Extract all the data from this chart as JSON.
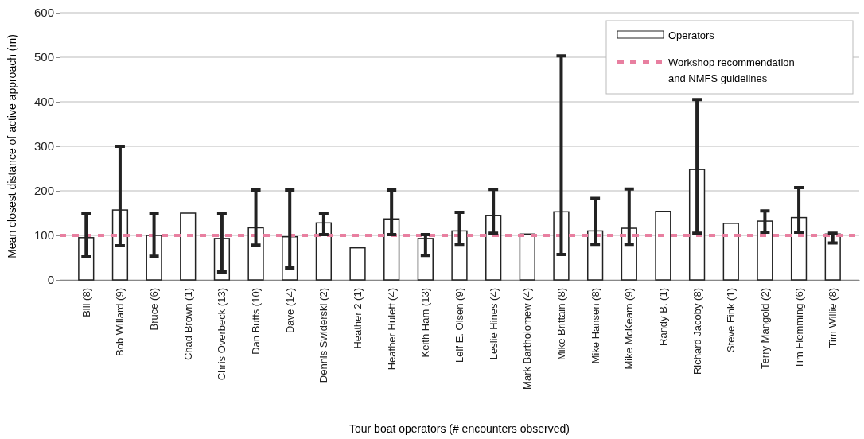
{
  "chart_data": {
    "type": "bar",
    "xlabel": "Tour boat operators (# encounters observed)",
    "ylabel": "Mean closest distance of active approach (m)",
    "categories": [
      "Bill (8)",
      "Bob Willard (9)",
      "Bruce (6)",
      "Chad Brown (1)",
      "Chris Overbeck (13)",
      "Dan Butts (10)",
      "Dave (14)",
      "Dennis Swiderski (2)",
      "Heather 2 (1)",
      "Heather Hulett (4)",
      "Keith Ham (13)",
      "Leif E. Olsen (9)",
      "Leslie Hines (4)",
      "Mark Bartholomew (4)",
      "Mike Brittain (8)",
      "Mike Hansen (8)",
      "Mike McKearn (9)",
      "Randy B. (1)",
      "Richard Jacoby (8)",
      "Steve Fink (1)",
      "Terry Mangold (2)",
      "Tim Flemming (6)",
      "Tim Willie (8)"
    ],
    "series": [
      {
        "name": "Operators",
        "color": "#ffffff",
        "values": [
          95,
          157,
          100,
          150,
          93,
          117,
          97,
          128,
          72,
          137,
          93,
          110,
          145,
          103,
          153,
          110,
          116,
          154,
          248,
          127,
          132,
          140,
          103
        ],
        "errors": [
          [
            52,
            150
          ],
          [
            77,
            300
          ],
          [
            53,
            150
          ],
          null,
          [
            18,
            150
          ],
          [
            78,
            202
          ],
          [
            27,
            202
          ],
          [
            102,
            150
          ],
          null,
          [
            102,
            202
          ],
          [
            55,
            102
          ],
          [
            80,
            152
          ],
          [
            105,
            203
          ],
          null,
          [
            57,
            503
          ],
          [
            80,
            183
          ],
          [
            80,
            204
          ],
          null,
          [
            105,
            405
          ],
          null,
          [
            107,
            155
          ],
          [
            107,
            207
          ],
          [
            83,
            105
          ]
        ]
      }
    ],
    "ylim": [
      0,
      600
    ],
    "yticks": [
      0,
      100,
      200,
      300,
      400,
      500,
      600
    ],
    "grid": "y",
    "legend": "top right",
    "ref_lines": [
      {
        "axis": "y",
        "value": 100,
        "label": "Workshop recommendation and NMFS guidelines",
        "color": "#e87fa0",
        "line_style": "dashed"
      }
    ]
  }
}
